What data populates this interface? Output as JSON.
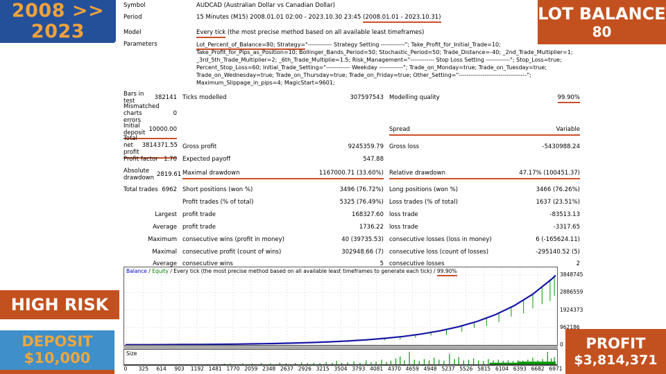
{
  "badges": {
    "years": "2008 >> 2023",
    "lot_balance_title": "LOT BALANCE",
    "lot_balance_value": "80",
    "high_risk": "HIGH RISK",
    "deposit_title": "DEPOSIT",
    "deposit_value": "$10,000",
    "profit_title": "PROFIT",
    "profit_value": "$3,814,371"
  },
  "colors": {
    "accent_orange": "#c3511f",
    "navy_box": "#24509a",
    "gold_text": "#eda63d",
    "deposit_blue": "#3f8fca",
    "balance_line": "#1616a6",
    "equity_green": "#009900",
    "underline_annotation": "#cb4f28"
  },
  "report": {
    "info_rows": [
      {
        "label": "Symbol",
        "segments": [
          {
            "t": "AUDCAD (Australian Dollar vs Canadian Dollar)"
          }
        ]
      },
      {
        "label": "Period",
        "segments": [
          {
            "t": "15 Minutes (M15) 2008.01.01 02:00 - 2023.10.30 23:45 "
          },
          {
            "t": "(2008.01.01 - 2023.10.31)",
            "ul": true
          }
        ]
      },
      {
        "label": "Model",
        "gap": true,
        "segments": [
          {
            "t": "Every tick",
            "ul": true
          },
          {
            "t": " (the most precise method based on all available least timeframes)"
          }
        ]
      }
    ],
    "parameters_label": "Parameters",
    "parameters_lines": [
      [
        {
          "t": "Lot_Percent_of_Balance=80; Strategy=",
          "ul": true
        },
        {
          "t": "\"------------ Strategy Setting ------------\"; Take_Profit_for_Initial_Trade=10;"
        }
      ],
      [
        {
          "t": "Take_Profit_for_Pips_as_Position=10; Bollinger_Bands_Period=50; Stochastic_Period=50; Trade_Distance=-40; _2nd_Trade_Multiplier=1;"
        }
      ],
      [
        {
          "t": "_3rd_5th_Trade_Multiplier=2; _6th_Trade_Multiplie=1.5; Risk_Management=\"------------ Stop Loss Setting ------------\"; Stop_Loss=true;"
        }
      ],
      [
        {
          "t": "Percent_Stop_Loss=60; Initial_Trade_Setting=\"------------ Weekday ------------\"; Trade_on_Monday=true; Trade_on_Tuesday=true;"
        }
      ],
      [
        {
          "t": "Trade_on_Wednesday=true; Trade_on_Thursday=true; Trade_on_Friday=true; Other_Setting=\"----------------------------------\";"
        }
      ],
      [
        {
          "t": "Maximum_Slippage_in_pips=4; MagicStart=9601;"
        }
      ]
    ],
    "stat_rows": [
      {
        "h": 18,
        "cells": [
          {
            "l": "Bars in test",
            "v": "382141"
          },
          {
            "l": "Ticks modelled",
            "v": "307597543"
          },
          {
            "l": "Modelling quality",
            "v": "99.90%",
            "vul": true
          }
        ]
      },
      {
        "h": 28,
        "cells": [
          {
            "l": "Mismatched charts errors",
            "v": "0"
          },
          null,
          null
        ]
      },
      {
        "h": 18,
        "cells": [
          {
            "l": "Initial deposit",
            "v": "10000.00",
            "ul": true
          },
          null,
          {
            "l": "Spread",
            "v": "Variable",
            "ul": true
          }
        ]
      },
      {
        "h": 26,
        "cells": [
          {
            "l": "Total net profit",
            "v": "3814371.55",
            "ul": true
          },
          {
            "l": "Gross profit",
            "v": "9245359.79"
          },
          {
            "l": "Gross loss",
            "v": "-5430988.24"
          }
        ]
      },
      {
        "h": 18,
        "cells": [
          {
            "l": "Profit factor",
            "v": "1.70"
          },
          {
            "l": "Expected payoff",
            "v": "547.88"
          },
          null
        ]
      },
      {
        "h": 26,
        "cells": [
          {
            "l": "Absolute drawdown",
            "v": "2819.61"
          },
          {
            "l": "Maximal drawdown",
            "v": "1167000.71 (33.60%)",
            "ul": true
          },
          {
            "l": "Relative drawdown",
            "v": "47.17% (100451.37)",
            "ul": true
          }
        ]
      },
      {
        "h": 18,
        "cells": [
          {
            "l": "Total trades",
            "v": "6962"
          },
          {
            "l": "Short positions (won %)",
            "v": "3496 (76.72%)"
          },
          {
            "l": "Long positions (won %)",
            "v": "3466 (76.26%)"
          }
        ]
      },
      {
        "h": 18,
        "cells": [
          null,
          {
            "l": "Profit trades (% of total)",
            "v": "5325 (76.49%)"
          },
          {
            "l": "Loss trades (% of total)",
            "v": "1637 (23.51%)"
          }
        ]
      },
      {
        "h": 18,
        "cells": [
          {
            "l": "",
            "v": "Largest"
          },
          {
            "l": "profit trade",
            "v": "168327.60"
          },
          {
            "l": "loss trade",
            "v": "-83513.13"
          }
        ]
      },
      {
        "h": 18,
        "cells": [
          {
            "l": "",
            "v": "Average"
          },
          {
            "l": "profit trade",
            "v": "1736.22"
          },
          {
            "l": "loss trade",
            "v": "-3317.65"
          }
        ]
      },
      {
        "h": 18,
        "cells": [
          {
            "l": "",
            "v": "Maximum"
          },
          {
            "l": "consecutive wins (profit in money)",
            "v": "40 (39735.53)"
          },
          {
            "l": "consecutive losses (loss in money)",
            "v": "6 (-165624.11)"
          }
        ]
      },
      {
        "h": 18,
        "cells": [
          {
            "l": "",
            "v": "Maximal"
          },
          {
            "l": "consecutive profit (count of wins)",
            "v": "302948.66 (7)"
          },
          {
            "l": "consecutive loss (count of losses)",
            "v": "-295140.52 (5)"
          }
        ]
      },
      {
        "h": 16,
        "cells": [
          {
            "l": "",
            "v": "Average"
          },
          {
            "l": "consecutive wins",
            "v": "5"
          },
          {
            "l": "consecutive losses",
            "v": "2"
          }
        ]
      }
    ]
  },
  "chart_data": {
    "type": "line",
    "title": "Balance / Equity / Every tick (the most precise method based on all available least timeframes to generate each tick) / 99.90%",
    "header": {
      "balance_label": "Balance",
      "sep1": " / ",
      "equity_label": "Equity",
      "method_text": " / Every tick (the most precise method based on all available least timeframes to generate each tick) / ",
      "quality": "99.90%"
    },
    "legend": [
      "Balance",
      "Equity"
    ],
    "x_range": [
      0,
      6971
    ],
    "y_range": [
      0,
      3848745
    ],
    "y_ticks": [
      3848745,
      2886559,
      1924373,
      962186,
      0
    ],
    "x_ticks": [
      0,
      325,
      614,
      903,
      1192,
      1481,
      1770,
      2059,
      2348,
      2637,
      2926,
      3215,
      3504,
      3793,
      4081,
      4370,
      4659,
      4948,
      5237,
      5526,
      5815,
      6104,
      6393,
      6682,
      6971
    ],
    "grid": true,
    "balance_points": [
      [
        0,
        10000
      ],
      [
        300,
        12917
      ],
      [
        600,
        16685
      ],
      [
        900,
        21553
      ],
      [
        1200,
        27841
      ],
      [
        1500,
        35963
      ],
      [
        1800,
        46455
      ],
      [
        2100,
        60008
      ],
      [
        2400,
        77515
      ],
      [
        2700,
        100129
      ],
      [
        3000,
        129340
      ],
      [
        3300,
        167070
      ],
      [
        3600,
        215820
      ],
      [
        3900,
        278780
      ],
      [
        4200,
        360110
      ],
      [
        4500,
        465170
      ],
      [
        4800,
        600880
      ],
      [
        5100,
        776180
      ],
      [
        5400,
        1002620
      ],
      [
        5700,
        1295120
      ],
      [
        6000,
        1672950
      ],
      [
        6300,
        2161000
      ],
      [
        6600,
        2791400
      ],
      [
        6900,
        3605700
      ],
      [
        6971,
        3824400
      ]
    ],
    "equity_spikes": [
      {
        "t": 3000,
        "f": 0.25
      },
      {
        "t": 3300,
        "f": 0.2
      },
      {
        "t": 3600,
        "f": 0.3
      },
      {
        "t": 3900,
        "f": 0.25
      },
      {
        "t": 4200,
        "f": 0.3
      },
      {
        "t": 4450,
        "f": 0.35
      },
      {
        "t": 4700,
        "f": 0.3
      },
      {
        "t": 4950,
        "f": 0.25
      },
      {
        "t": 5200,
        "f": 0.35
      },
      {
        "t": 5450,
        "f": 0.3
      },
      {
        "t": 5650,
        "f": 0.25
      },
      {
        "t": 5850,
        "f": 0.3
      },
      {
        "t": 6050,
        "f": 0.28
      },
      {
        "t": 6250,
        "f": 0.25
      },
      {
        "t": 6450,
        "f": 0.3
      },
      {
        "t": 6600,
        "f": 0.28
      },
      {
        "t": 6750,
        "f": 0.3
      },
      {
        "t": 6880,
        "f": 0.32
      },
      {
        "t": 6950,
        "f": 0.28
      }
    ],
    "size_pane": {
      "label": "Size",
      "bars": [
        [
          1600,
          0.06
        ],
        [
          1700,
          0.05
        ],
        [
          1900,
          0.08
        ],
        [
          2050,
          0.06
        ],
        [
          2200,
          0.1
        ],
        [
          2350,
          0.07
        ],
        [
          2500,
          0.12
        ],
        [
          2600,
          0.08
        ],
        [
          2750,
          0.1
        ],
        [
          2850,
          0.15
        ],
        [
          2950,
          0.09
        ],
        [
          3050,
          0.12
        ],
        [
          3150,
          0.1
        ],
        [
          3250,
          0.18
        ],
        [
          3350,
          0.12
        ],
        [
          3420,
          0.26
        ],
        [
          3500,
          0.1
        ],
        [
          3600,
          0.14
        ],
        [
          3700,
          0.22
        ],
        [
          3800,
          0.12
        ],
        [
          3900,
          0.3
        ],
        [
          3980,
          0.16
        ],
        [
          4060,
          0.2
        ],
        [
          4150,
          0.35
        ],
        [
          4230,
          0.18
        ],
        [
          4300,
          0.28
        ],
        [
          4380,
          0.45
        ],
        [
          4450,
          0.6
        ],
        [
          4520,
          0.3
        ],
        [
          4600,
          0.95
        ],
        [
          4680,
          0.35
        ],
        [
          4760,
          0.25
        ],
        [
          4840,
          0.4
        ],
        [
          4920,
          0.3
        ],
        [
          5000,
          0.5
        ],
        [
          5080,
          0.35
        ],
        [
          5160,
          0.28
        ],
        [
          5250,
          0.8
        ],
        [
          5330,
          0.4
        ],
        [
          5400,
          0.55
        ],
        [
          5480,
          0.3
        ],
        [
          5560,
          0.35
        ],
        [
          5640,
          0.45
        ],
        [
          5720,
          0.3
        ],
        [
          5800,
          0.25
        ],
        [
          5880,
          0.4
        ],
        [
          5960,
          0.3
        ],
        [
          6040,
          0.35
        ],
        [
          6120,
          0.28
        ],
        [
          6200,
          0.3
        ],
        [
          6280,
          0.25
        ],
        [
          6360,
          0.3
        ],
        [
          6440,
          0.28
        ],
        [
          6520,
          0.35
        ],
        [
          6600,
          0.5
        ],
        [
          6680,
          0.3
        ],
        [
          6760,
          0.4
        ],
        [
          6840,
          0.95
        ],
        [
          6900,
          0.45
        ],
        [
          6950,
          0.55
        ]
      ],
      "blocks": [
        {
          "x1": 5900,
          "x2": 6971,
          "h": 0.12
        },
        {
          "x1": 6350,
          "x2": 6971,
          "h": 0.2
        }
      ]
    }
  }
}
